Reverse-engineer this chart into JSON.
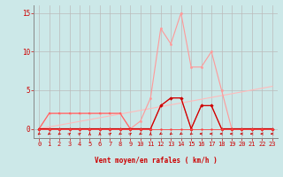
{
  "xlabel": "Vent moyen/en rafales ( km/h )",
  "bg_color": "#cce8e8",
  "grid_color": "#aaaaaa",
  "text_color": "#cc0000",
  "ylim": [
    -1.2,
    16.0
  ],
  "xlim": [
    -0.5,
    23.5
  ],
  "yticks": [
    0,
    5,
    10,
    15
  ],
  "xticks": [
    0,
    1,
    2,
    3,
    4,
    5,
    6,
    7,
    8,
    9,
    10,
    11,
    12,
    13,
    14,
    15,
    16,
    17,
    18,
    19,
    20,
    21,
    22,
    23
  ],
  "x": [
    0,
    1,
    2,
    3,
    4,
    5,
    6,
    7,
    8,
    9,
    10,
    11,
    12,
    13,
    14,
    15,
    16,
    17,
    18,
    19,
    20,
    21,
    22,
    23
  ],
  "rafales_y": [
    0,
    2,
    2,
    2,
    2,
    2,
    2,
    2,
    2,
    0,
    1,
    4,
    13,
    11,
    15,
    8,
    8,
    10,
    5,
    0,
    0,
    0,
    0,
    0
  ],
  "rafales_color": "#ff9999",
  "moyen_y": [
    0,
    2,
    2,
    2,
    2,
    2,
    2,
    2,
    2,
    0,
    0,
    0,
    3,
    4,
    4,
    0,
    3,
    3,
    0,
    0,
    0,
    0,
    0,
    0
  ],
  "moyen_color": "#ff6666",
  "dark_y": [
    0,
    0,
    0,
    0,
    0,
    0,
    0,
    0,
    0,
    0,
    0,
    0,
    3,
    4,
    4,
    0,
    3,
    3,
    0,
    0,
    0,
    0,
    0,
    0
  ],
  "dark_color": "#cc0000",
  "zero_y": [
    0,
    0,
    0,
    0,
    0,
    0,
    0,
    0,
    0,
    0,
    0,
    0,
    0,
    0,
    0,
    0,
    0,
    0,
    0,
    0,
    0,
    0,
    0,
    0
  ],
  "zero_color": "#ff4444",
  "trend_x": [
    0,
    23
  ],
  "trend_y": [
    0.0,
    5.5
  ],
  "trend_color": "#ffbbbb",
  "arrow_dirs": [
    225,
    225,
    225,
    45,
    45,
    90,
    90,
    45,
    225,
    45,
    225,
    90,
    225,
    225,
    225,
    225,
    180,
    180,
    180,
    180,
    180,
    180,
    180,
    180
  ]
}
